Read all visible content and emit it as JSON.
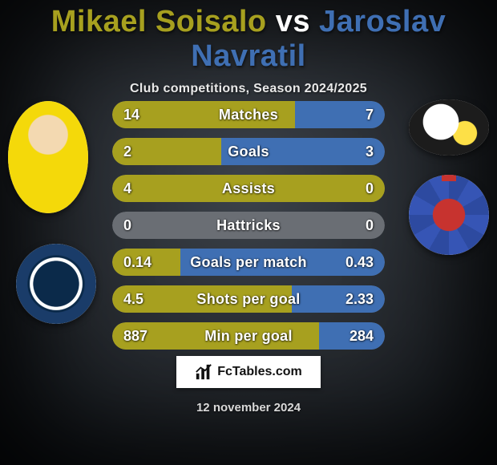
{
  "title": {
    "player1": "Mikael Soisalo",
    "vs": "vs",
    "player2": "Jaroslav Navratil",
    "player1_color": "#a7a01f",
    "vs_color": "#ffffff",
    "player2_color": "#3f6fb3"
  },
  "subtitle": "Club competitions, Season 2024/2025",
  "colors": {
    "left_fill": "#a7a01f",
    "right_fill": "#3f6fb3",
    "track": "#6a6e74",
    "bg_inner": "#3c424a",
    "bg_outer": "#0e1216"
  },
  "bars": [
    {
      "label": "Matches",
      "left": "14",
      "right": "7",
      "left_frac": 0.67,
      "right_frac": 0.33
    },
    {
      "label": "Goals",
      "left": "2",
      "right": "3",
      "left_frac": 0.4,
      "right_frac": 0.6
    },
    {
      "label": "Assists",
      "left": "4",
      "right": "0",
      "left_frac": 1.0,
      "right_frac": 0.0
    },
    {
      "label": "Hattricks",
      "left": "0",
      "right": "0",
      "left_frac": 0.0,
      "right_frac": 0.0
    },
    {
      "label": "Goals per match",
      "left": "0.14",
      "right": "0.43",
      "left_frac": 0.25,
      "right_frac": 0.75
    },
    {
      "label": "Shots per goal",
      "left": "4.5",
      "right": "2.33",
      "left_frac": 0.66,
      "right_frac": 0.34
    },
    {
      "label": "Min per goal",
      "left": "887",
      "right": "284",
      "left_frac": 0.76,
      "right_frac": 0.24
    }
  ],
  "brand": "FcTables.com",
  "date": "12 november 2024",
  "avatars": {
    "left_player_alt": "player-1-photo",
    "right_player_alt": "player-2-photo",
    "left_club_alt": "club-1-crest",
    "right_club_alt": "club-2-crest"
  }
}
